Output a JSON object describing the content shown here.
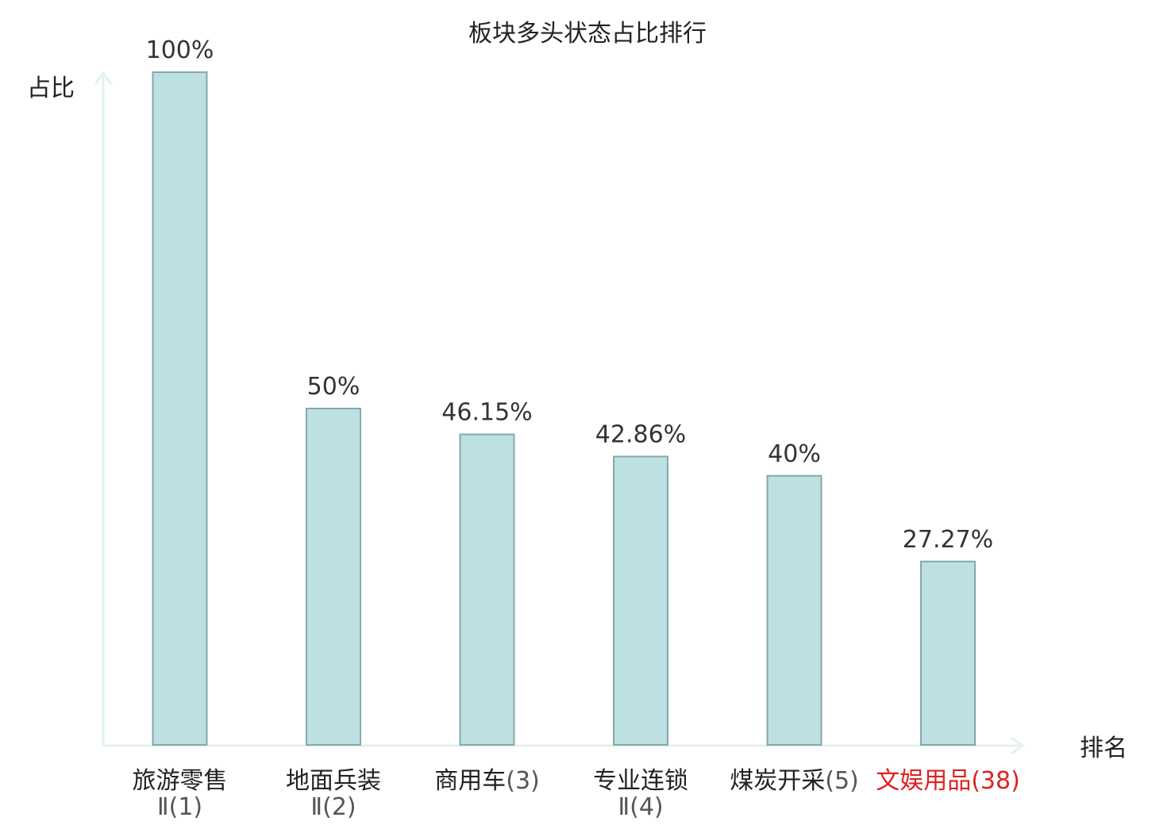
{
  "chart_data": {
    "type": "bar",
    "title": "板块多头状态占比排行",
    "ylabel": "占比",
    "xlabel": "排名",
    "ylim": [
      0,
      100
    ],
    "grid": false,
    "legend": "none",
    "categories": [
      {
        "name": "旅游零售",
        "suffix": "Ⅱ(1)",
        "highlight": false
      },
      {
        "name": "地面兵装",
        "suffix": "Ⅱ(2)",
        "highlight": false
      },
      {
        "name": "商用车",
        "suffix": "(3)",
        "highlight": false
      },
      {
        "name": "专业连锁",
        "suffix": "Ⅱ(4)",
        "highlight": false
      },
      {
        "name": "煤炭开采",
        "suffix": "(5)",
        "highlight": false
      },
      {
        "name": "文娱用品",
        "suffix": "(38)",
        "highlight": true
      }
    ],
    "values": [
      100,
      50,
      46.15,
      42.86,
      40,
      27.27
    ],
    "value_labels": [
      "100%",
      "50%",
      "46.15%",
      "42.86%",
      "40%",
      "27.27%"
    ],
    "colors": {
      "bar_fill": "#bde0e3",
      "bar_stroke": "#86a8ab",
      "axis": "#e3f2ef",
      "highlight_text": "#e02020",
      "text": "#222222"
    }
  }
}
